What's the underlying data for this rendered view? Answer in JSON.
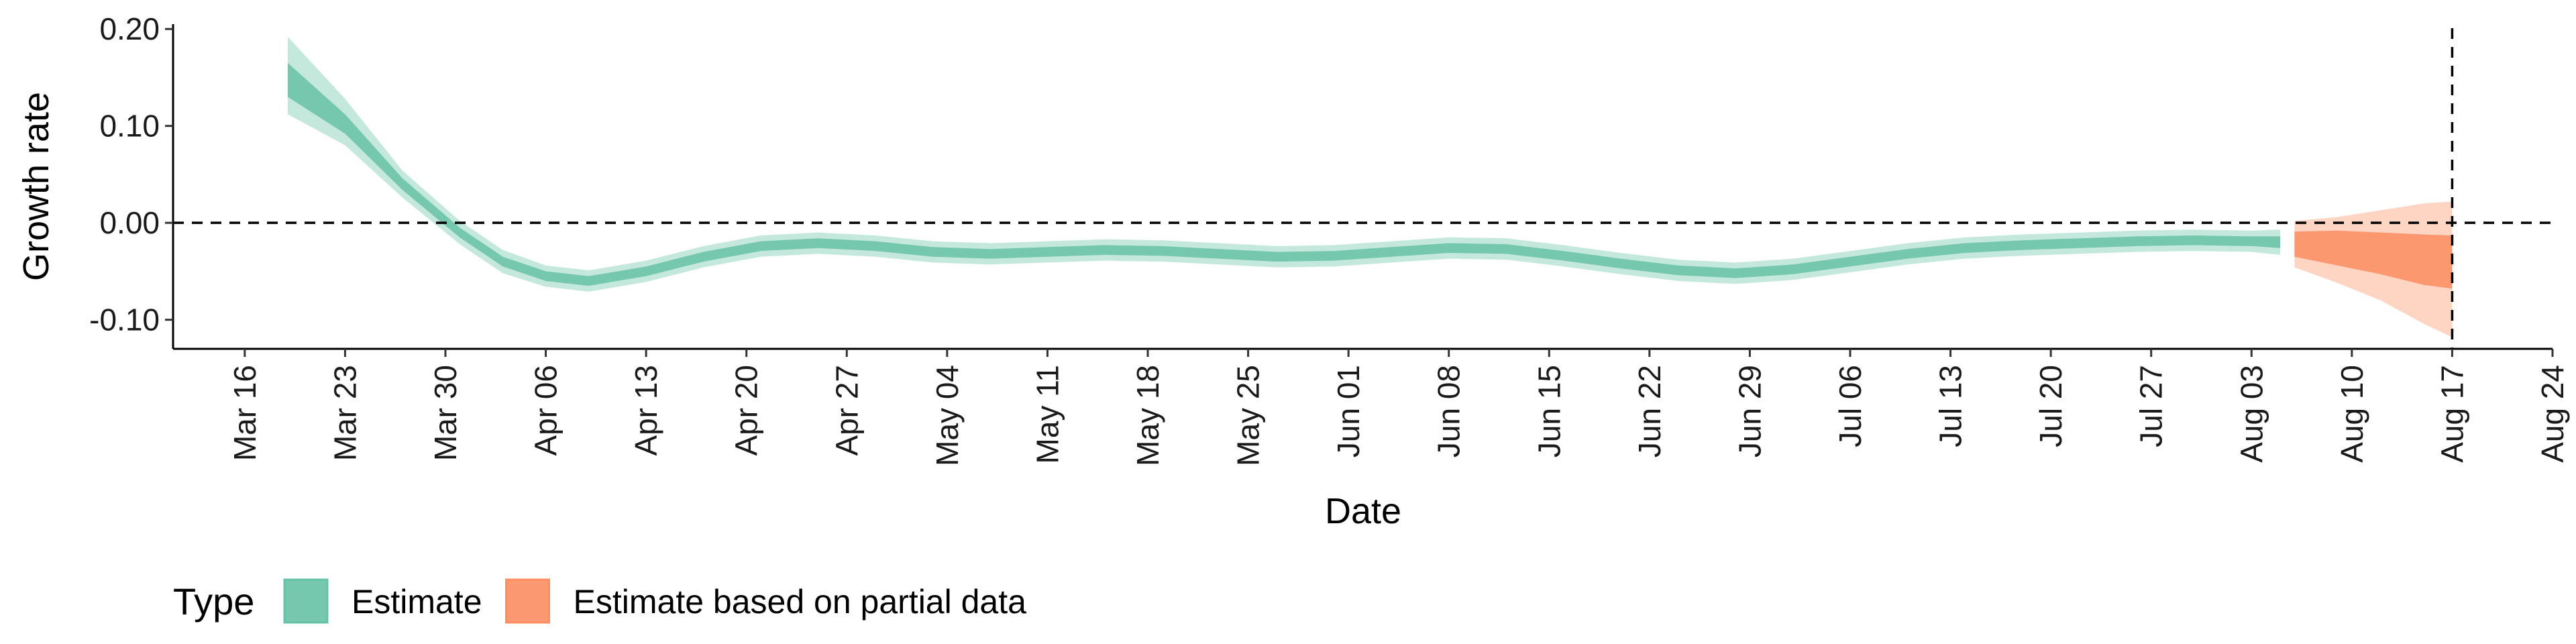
{
  "chart_data": {
    "type": "area",
    "title": "",
    "xlabel": "Date",
    "ylabel": "Growth rate",
    "x_range": [
      "2020-03-11",
      "2020-08-24"
    ],
    "ylim": [
      -0.13,
      0.205
    ],
    "y_ticks": [
      0.2,
      0.1,
      0.0,
      -0.1
    ],
    "y_tick_labels": [
      "0.20",
      "0.10",
      "0.00",
      "-0.10"
    ],
    "x_ticks": [
      "2020-03-16",
      "2020-03-23",
      "2020-03-30",
      "2020-04-06",
      "2020-04-13",
      "2020-04-20",
      "2020-04-27",
      "2020-05-04",
      "2020-05-11",
      "2020-05-18",
      "2020-05-25",
      "2020-06-01",
      "2020-06-08",
      "2020-06-15",
      "2020-06-22",
      "2020-06-29",
      "2020-07-06",
      "2020-07-13",
      "2020-07-20",
      "2020-07-27",
      "2020-08-03",
      "2020-08-10",
      "2020-08-17",
      "2020-08-24"
    ],
    "x_tick_labels": [
      "Mar 16",
      "Mar 23",
      "Mar 30",
      "Apr 06",
      "Apr 13",
      "Apr 20",
      "Apr 27",
      "May 04",
      "May 11",
      "May 18",
      "May 25",
      "Jun 01",
      "Jun 08",
      "Jun 15",
      "Jun 22",
      "Jun 29",
      "Jul 06",
      "Jul 13",
      "Jul 20",
      "Jul 27",
      "Aug 03",
      "Aug 10",
      "Aug 17",
      "Aug 24"
    ],
    "reference_lines": {
      "y": 0.0,
      "x": "2020-08-17"
    },
    "grid": false,
    "legend": {
      "title": "Type",
      "position": "bottom-left",
      "entries": [
        {
          "label": "Estimate",
          "color": "#66c2a5"
        },
        {
          "label": "Estimate based on partial data",
          "color": "#fc8d62"
        }
      ]
    },
    "series": [
      {
        "name": "Estimate",
        "color": "#66c2a5",
        "points": [
          {
            "x": "2020-03-19",
            "median": 0.148,
            "lower50": 0.13,
            "upper50": 0.165,
            "lower90": 0.112,
            "upper90": 0.192
          },
          {
            "x": "2020-03-23",
            "median": 0.102,
            "lower50": 0.092,
            "upper50": 0.112,
            "lower90": 0.08,
            "upper90": 0.128
          },
          {
            "x": "2020-03-27",
            "median": 0.04,
            "lower50": 0.034,
            "upper50": 0.046,
            "lower90": 0.026,
            "upper90": 0.054
          },
          {
            "x": "2020-03-31",
            "median": -0.01,
            "lower50": -0.015,
            "upper50": -0.005,
            "lower90": -0.022,
            "upper90": 0.002
          },
          {
            "x": "2020-04-03",
            "median": -0.04,
            "lower50": -0.045,
            "upper50": -0.035,
            "lower90": -0.052,
            "upper90": -0.028
          },
          {
            "x": "2020-04-06",
            "median": -0.055,
            "lower50": -0.06,
            "upper50": -0.05,
            "lower90": -0.066,
            "upper90": -0.044
          },
          {
            "x": "2020-04-09",
            "median": -0.06,
            "lower50": -0.065,
            "upper50": -0.055,
            "lower90": -0.071,
            "upper90": -0.049
          },
          {
            "x": "2020-04-13",
            "median": -0.05,
            "lower50": -0.055,
            "upper50": -0.045,
            "lower90": -0.061,
            "upper90": -0.039
          },
          {
            "x": "2020-04-17",
            "median": -0.035,
            "lower50": -0.04,
            "upper50": -0.03,
            "lower90": -0.046,
            "upper90": -0.024
          },
          {
            "x": "2020-04-21",
            "median": -0.024,
            "lower50": -0.029,
            "upper50": -0.019,
            "lower90": -0.035,
            "upper90": -0.013
          },
          {
            "x": "2020-04-25",
            "median": -0.021,
            "lower50": -0.026,
            "upper50": -0.016,
            "lower90": -0.032,
            "upper90": -0.01
          },
          {
            "x": "2020-04-29",
            "median": -0.024,
            "lower50": -0.029,
            "upper50": -0.019,
            "lower90": -0.035,
            "upper90": -0.013
          },
          {
            "x": "2020-05-03",
            "median": -0.03,
            "lower50": -0.035,
            "upper50": -0.025,
            "lower90": -0.041,
            "upper90": -0.019
          },
          {
            "x": "2020-05-07",
            "median": -0.032,
            "lower50": -0.037,
            "upper50": -0.027,
            "lower90": -0.043,
            "upper90": -0.021
          },
          {
            "x": "2020-05-11",
            "median": -0.03,
            "lower50": -0.035,
            "upper50": -0.025,
            "lower90": -0.041,
            "upper90": -0.019
          },
          {
            "x": "2020-05-15",
            "median": -0.028,
            "lower50": -0.033,
            "upper50": -0.023,
            "lower90": -0.039,
            "upper90": -0.017
          },
          {
            "x": "2020-05-19",
            "median": -0.029,
            "lower50": -0.034,
            "upper50": -0.024,
            "lower90": -0.04,
            "upper90": -0.018
          },
          {
            "x": "2020-05-23",
            "median": -0.032,
            "lower50": -0.037,
            "upper50": -0.027,
            "lower90": -0.043,
            "upper90": -0.021
          },
          {
            "x": "2020-05-27",
            "median": -0.035,
            "lower50": -0.04,
            "upper50": -0.03,
            "lower90": -0.046,
            "upper90": -0.024
          },
          {
            "x": "2020-05-31",
            "median": -0.034,
            "lower50": -0.039,
            "upper50": -0.029,
            "lower90": -0.045,
            "upper90": -0.023
          },
          {
            "x": "2020-06-04",
            "median": -0.03,
            "lower50": -0.035,
            "upper50": -0.025,
            "lower90": -0.041,
            "upper90": -0.019
          },
          {
            "x": "2020-06-08",
            "median": -0.026,
            "lower50": -0.031,
            "upper50": -0.021,
            "lower90": -0.037,
            "upper90": -0.015
          },
          {
            "x": "2020-06-12",
            "median": -0.027,
            "lower50": -0.032,
            "upper50": -0.022,
            "lower90": -0.038,
            "upper90": -0.016
          },
          {
            "x": "2020-06-16",
            "median": -0.034,
            "lower50": -0.039,
            "upper50": -0.029,
            "lower90": -0.045,
            "upper90": -0.023
          },
          {
            "x": "2020-06-20",
            "median": -0.042,
            "lower50": -0.047,
            "upper50": -0.037,
            "lower90": -0.053,
            "upper90": -0.031
          },
          {
            "x": "2020-06-24",
            "median": -0.049,
            "lower50": -0.054,
            "upper50": -0.044,
            "lower90": -0.06,
            "upper90": -0.038
          },
          {
            "x": "2020-06-28",
            "median": -0.052,
            "lower50": -0.057,
            "upper50": -0.047,
            "lower90": -0.063,
            "upper90": -0.041
          },
          {
            "x": "2020-07-02",
            "median": -0.048,
            "lower50": -0.053,
            "upper50": -0.043,
            "lower90": -0.059,
            "upper90": -0.037
          },
          {
            "x": "2020-07-06",
            "median": -0.04,
            "lower50": -0.045,
            "upper50": -0.035,
            "lower90": -0.051,
            "upper90": -0.029
          },
          {
            "x": "2020-07-10",
            "median": -0.032,
            "lower50": -0.037,
            "upper50": -0.027,
            "lower90": -0.043,
            "upper90": -0.021
          },
          {
            "x": "2020-07-14",
            "median": -0.026,
            "lower50": -0.031,
            "upper50": -0.021,
            "lower90": -0.037,
            "upper90": -0.015
          },
          {
            "x": "2020-07-18",
            "median": -0.023,
            "lower50": -0.028,
            "upper50": -0.018,
            "lower90": -0.034,
            "upper90": -0.012
          },
          {
            "x": "2020-07-22",
            "median": -0.021,
            "lower50": -0.026,
            "upper50": -0.016,
            "lower90": -0.032,
            "upper90": -0.01
          },
          {
            "x": "2020-07-26",
            "median": -0.019,
            "lower50": -0.024,
            "upper50": -0.014,
            "lower90": -0.03,
            "upper90": -0.008
          },
          {
            "x": "2020-07-30",
            "median": -0.018,
            "lower50": -0.023,
            "upper50": -0.013,
            "lower90": -0.029,
            "upper90": -0.007
          },
          {
            "x": "2020-08-03",
            "median": -0.019,
            "lower50": -0.024,
            "upper50": -0.014,
            "lower90": -0.03,
            "upper90": -0.008
          },
          {
            "x": "2020-08-05",
            "median": -0.02,
            "lower50": -0.026,
            "upper50": -0.014,
            "lower90": -0.033,
            "upper90": -0.007
          }
        ]
      },
      {
        "name": "Estimate based on partial data",
        "color": "#fc8d62",
        "points": [
          {
            "x": "2020-08-06",
            "median": -0.022,
            "lower50": -0.035,
            "upper50": -0.009,
            "lower90": -0.046,
            "upper90": 0.002
          },
          {
            "x": "2020-08-09",
            "median": -0.026,
            "lower50": -0.044,
            "upper50": -0.008,
            "lower90": -0.062,
            "upper90": 0.006
          },
          {
            "x": "2020-08-12",
            "median": -0.031,
            "lower50": -0.053,
            "upper50": -0.01,
            "lower90": -0.08,
            "upper90": 0.013
          },
          {
            "x": "2020-08-15",
            "median": -0.036,
            "lower50": -0.064,
            "upper50": -0.012,
            "lower90": -0.104,
            "upper90": 0.02
          },
          {
            "x": "2020-08-17",
            "median": -0.038,
            "lower50": -0.068,
            "upper50": -0.013,
            "lower90": -0.118,
            "upper90": 0.022
          }
        ]
      }
    ]
  }
}
